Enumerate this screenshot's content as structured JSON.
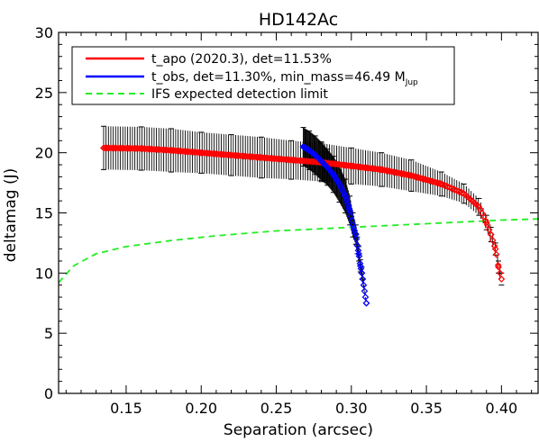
{
  "chart_data": {
    "type": "scatter",
    "title": "HD142Ac",
    "xlabel": "Separation (arcsec)",
    "ylabel": "deltamag (J)",
    "xlim": [
      0.105,
      0.425
    ],
    "ylim": [
      0,
      30
    ],
    "xticks": [
      0.15,
      0.2,
      0.25,
      0.3,
      0.35,
      0.4
    ],
    "xtick_labels": [
      "0.15",
      "0.20",
      "0.25",
      "0.30",
      "0.35",
      "0.40"
    ],
    "yticks": [
      0,
      5,
      10,
      15,
      20,
      25,
      30
    ],
    "ytick_labels": [
      "0",
      "5",
      "10",
      "15",
      "20",
      "25",
      "30"
    ],
    "legend_position": "top-left",
    "legend": [
      {
        "label": "t_apo (2020.3), det=11.53%",
        "color": "#ff0000",
        "style": "solid"
      },
      {
        "label": "t_obs, det=11.30%, min_mass=46.49 M",
        "sub": "Jup",
        "color": "#0000ff",
        "style": "solid"
      },
      {
        "label": "IFS expected detection limit",
        "color": "#22ee22",
        "style": "dashed"
      }
    ],
    "series": [
      {
        "name": "t_apo (2020.3), det=11.53%",
        "color": "#ff0000",
        "x": [
          0.135,
          0.16,
          0.18,
          0.2,
          0.22,
          0.24,
          0.26,
          0.28,
          0.3,
          0.32,
          0.34,
          0.36,
          0.375,
          0.385,
          0.39,
          0.393,
          0.396,
          0.398,
          0.4
        ],
        "y": [
          20.4,
          20.35,
          20.2,
          20.0,
          19.8,
          19.6,
          19.4,
          19.2,
          18.9,
          18.6,
          18.1,
          17.4,
          16.6,
          15.5,
          14.2,
          13.2,
          12.0,
          10.5,
          9.5
        ],
        "err": [
          1.8,
          1.8,
          1.8,
          1.7,
          1.7,
          1.7,
          1.6,
          1.6,
          1.5,
          1.4,
          1.3,
          1.0,
          0.8,
          0.7,
          0.6,
          0.6,
          0.5,
          0.5,
          0.5
        ]
      },
      {
        "name": "t_obs, det=11.30%, min_mass=46.49 MJup",
        "color": "#0000ff",
        "x": [
          0.268,
          0.272,
          0.276,
          0.28,
          0.284,
          0.288,
          0.292,
          0.296,
          0.299,
          0.301,
          0.303,
          0.304,
          0.305,
          0.306,
          0.307,
          0.31
        ],
        "y": [
          20.5,
          20.2,
          19.8,
          19.3,
          18.8,
          18.2,
          17.4,
          16.4,
          15.2,
          14.0,
          13.2,
          12.3,
          11.6,
          10.6,
          10.0,
          7.5
        ],
        "err": [
          1.6,
          1.6,
          1.6,
          1.6,
          1.5,
          1.5,
          1.5,
          1.4,
          1.2,
          1.0,
          0.8,
          0.7,
          0.6,
          0.5,
          0.5,
          0.0
        ]
      },
      {
        "name": "IFS expected detection limit",
        "color": "#22ee22",
        "x": [
          0.105,
          0.115,
          0.13,
          0.15,
          0.18,
          0.21,
          0.25,
          0.3,
          0.35,
          0.4,
          0.425
        ],
        "y": [
          9.2,
          10.6,
          11.6,
          12.2,
          12.7,
          13.1,
          13.5,
          13.8,
          14.1,
          14.4,
          14.5
        ]
      }
    ]
  }
}
